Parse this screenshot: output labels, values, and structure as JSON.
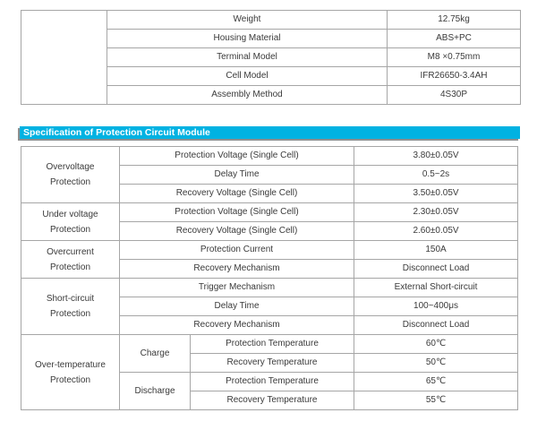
{
  "page": {
    "background_color": "#ffffff",
    "text_color": "#3a3a3a",
    "border_color": "#a6a6a6"
  },
  "general_spec_table": {
    "rows": [
      {
        "label": "Weight",
        "value": "12.75kg"
      },
      {
        "label": "Housing Material",
        "value": "ABS+PC"
      },
      {
        "label": "Terminal Model",
        "value": "M8 ×0.75mm"
      },
      {
        "label": "Cell Model",
        "value": "IFR26650-3.4AH"
      },
      {
        "label": "Assembly Method",
        "value": "4S30P"
      }
    ]
  },
  "section_header": {
    "title": "Specification of Protection Circuit Module",
    "background_color": "#00b2e2",
    "text_color": "#ffffff"
  },
  "protection_table": {
    "groups": [
      {
        "line1": "Overvoltage",
        "line2": "Protection"
      },
      {
        "line1": "Under voltage",
        "line2": "Protection"
      },
      {
        "line1": "Overcurrent",
        "line2": "Protection"
      },
      {
        "line1": "Short-circuit",
        "line2": "Protection"
      },
      {
        "line1": "Over-temperature",
        "line2": "Protection"
      }
    ],
    "sub_groups": [
      {
        "label": "Charge"
      },
      {
        "label": "Discharge"
      }
    ],
    "rows": [
      {
        "label": "Protection Voltage (Single Cell)",
        "value": "3.80±0.05V"
      },
      {
        "label": "Delay Time",
        "value": "0.5~2s"
      },
      {
        "label": "Recovery Voltage (Single Cell)",
        "value": "3.50±0.05V"
      },
      {
        "label": "Protection Voltage (Single Cell)",
        "value": "2.30±0.05V"
      },
      {
        "label": "Recovery Voltage (Single Cell)",
        "value": "2.60±0.05V"
      },
      {
        "label": "Protection Current",
        "value": "150A"
      },
      {
        "label": "Recovery Mechanism",
        "value": "Disconnect Load"
      },
      {
        "label": "Trigger Mechanism",
        "value": "External Short-circuit"
      },
      {
        "label": "Delay Time",
        "value": "100~400μs"
      },
      {
        "label": "Recovery Mechanism",
        "value": "Disconnect Load"
      },
      {
        "label": "Protection Temperature",
        "value": "60℃"
      },
      {
        "label": "Recovery Temperature",
        "value": "50℃"
      },
      {
        "label": "Protection Temperature",
        "value": "65℃"
      },
      {
        "label": "Recovery Temperature",
        "value": "55℃"
      }
    ]
  }
}
